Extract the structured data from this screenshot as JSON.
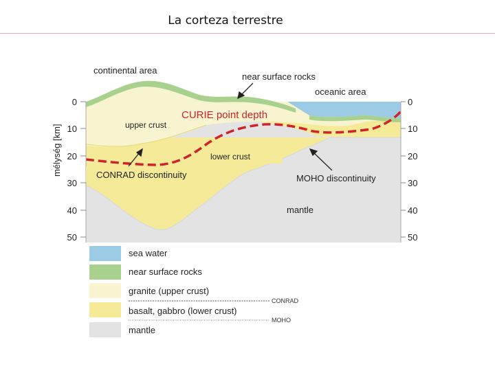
{
  "slide": {
    "title": "La corteza terrestre"
  },
  "diagram": {
    "labels": {
      "continental_area": "continental area",
      "near_surface_rocks": "near surface rocks",
      "oceanic_area": "oceanic area",
      "upper_crust": "upper crust",
      "curie_point_depth": "CURIE point depth",
      "lower_crust": "lower crust",
      "conrad_discontinuity": "CONRAD discontinuity",
      "moho_discontinuity": "MOHO discontinuity",
      "mantle": "mantle"
    },
    "axis": {
      "label": "mélység [km]",
      "ticks": [
        "0",
        "10",
        "20",
        "30",
        "40",
        "50"
      ]
    },
    "legend": {
      "items": [
        {
          "label": "sea water",
          "color": "#9ccbe6"
        },
        {
          "label": "near surface rocks",
          "color": "#a9d18e"
        },
        {
          "label": "granite (upper crust)",
          "color": "#f7f4cf"
        },
        {
          "label": "basalt, gabbro (lower crust)",
          "color": "#f5ea98"
        },
        {
          "label": "mantle",
          "color": "#e3e3e3"
        }
      ],
      "conrad_label": "CONRAD",
      "moho_label": "MOHO"
    },
    "colors": {
      "curie_line": "#d0222b",
      "sea_water": "#9ccbe6",
      "near_surface": "#a9d18e",
      "upper_crust": "#f7f4cf",
      "lower_crust": "#f5ea98",
      "mantle": "#e3e3e3"
    }
  }
}
